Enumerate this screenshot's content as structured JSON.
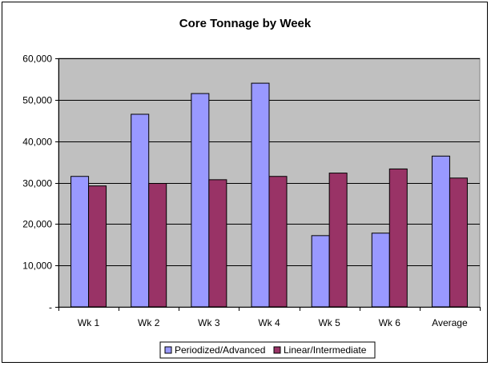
{
  "chart_data": {
    "type": "bar",
    "title": "Core Tonnage by Week",
    "xlabel": "",
    "ylabel": "",
    "categories": [
      "Wk 1",
      "Wk 2",
      "Wk 3",
      "Wk 4",
      "Wk 5",
      "Wk 6",
      "Average"
    ],
    "series": [
      {
        "name": "Periodized/Advanced",
        "color": "#9999ff",
        "values": [
          31500,
          46500,
          51500,
          54000,
          17200,
          17800,
          36400
        ]
      },
      {
        "name": "Linear/Intermediate",
        "color": "#993366",
        "values": [
          29200,
          29800,
          30700,
          31500,
          32300,
          33300,
          31100
        ]
      }
    ],
    "ylim": [
      0,
      60000
    ],
    "yticks": [
      0,
      10000,
      20000,
      30000,
      40000,
      50000,
      60000
    ],
    "ytick_labels": [
      "-",
      "10,000",
      "20,000",
      "30,000",
      "40,000",
      "50,000",
      "60,000"
    ],
    "grid": true,
    "plot_background": "#c0c0c0",
    "legend_position": "bottom"
  }
}
